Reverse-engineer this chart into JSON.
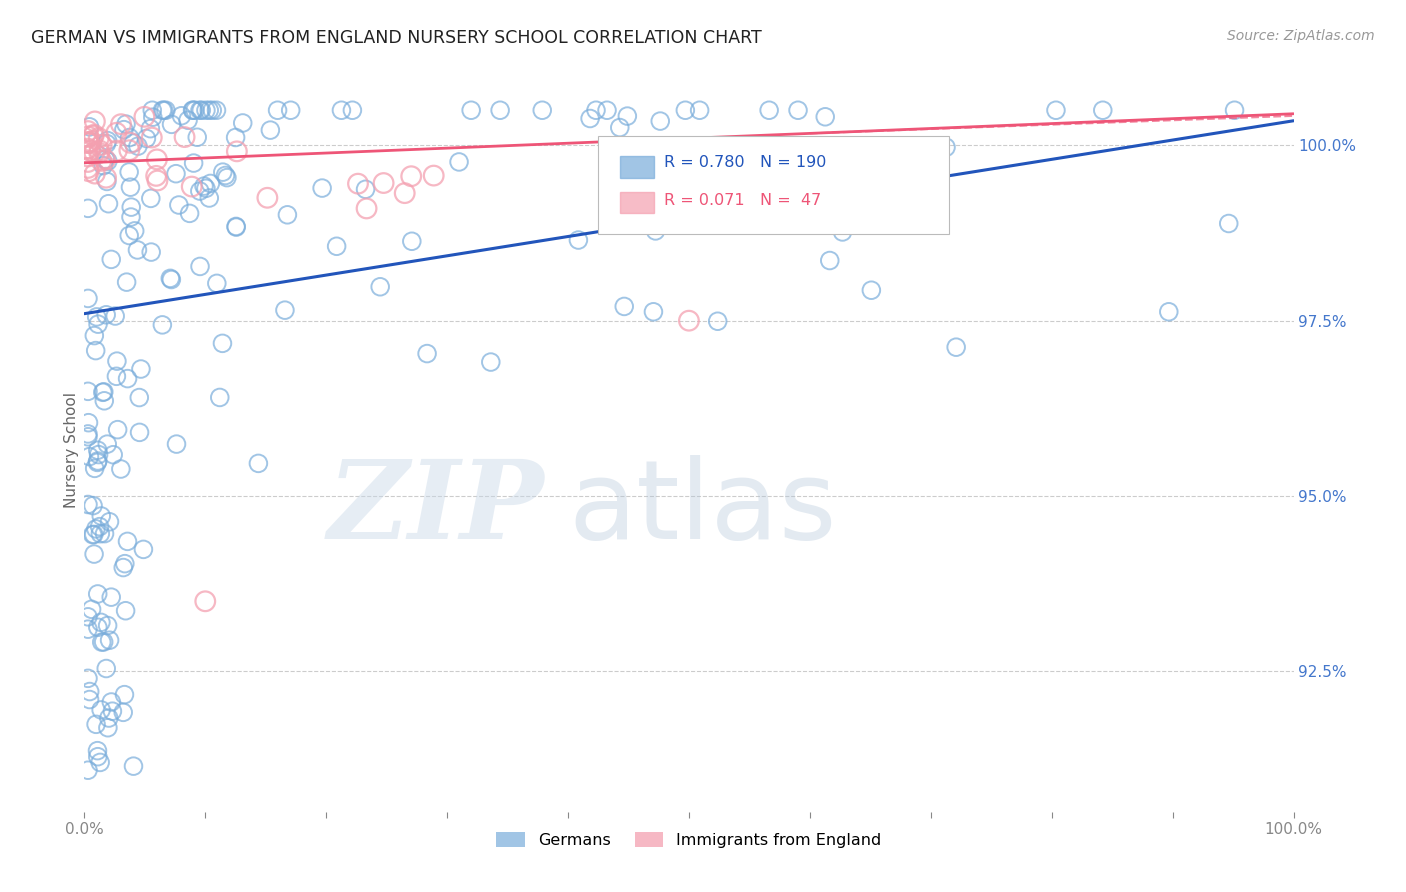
{
  "title": "GERMAN VS IMMIGRANTS FROM ENGLAND NURSERY SCHOOL CORRELATION CHART",
  "source": "Source: ZipAtlas.com",
  "ylabel": "Nursery School",
  "yticks": [
    92.5,
    95.0,
    97.5,
    100.0
  ],
  "ytick_labels": [
    "92.5%",
    "95.0%",
    "97.5%",
    "100.0%"
  ],
  "ymin": 90.5,
  "ymax": 100.8,
  "xmin": 0.0,
  "xmax": 100.0,
  "blue_R": 0.78,
  "blue_N": 190,
  "pink_R": 0.071,
  "pink_N": 47,
  "blue_color": "#7AADDB",
  "pink_color": "#F4A0B0",
  "blue_line_color": "#2255BB",
  "pink_line_color": "#EE5577",
  "legend_label_blue": "Germans",
  "legend_label_pink": "Immigrants from England",
  "watermark_zip": "ZIP",
  "watermark_atlas": "atlas",
  "background_color": "#ffffff",
  "grid_color": "#cccccc",
  "title_color": "#222222",
  "axis_label_color": "#666666",
  "right_axis_color": "#4477CC",
  "figsize": [
    14.06,
    8.92
  ],
  "dpi": 100,
  "blue_line_x0": 0.0,
  "blue_line_y0": 97.6,
  "blue_line_x1": 100.0,
  "blue_line_y1": 100.35,
  "pink_line_x0": 0.0,
  "pink_line_y0": 99.75,
  "pink_line_x1": 100.0,
  "pink_line_y1": 100.45
}
